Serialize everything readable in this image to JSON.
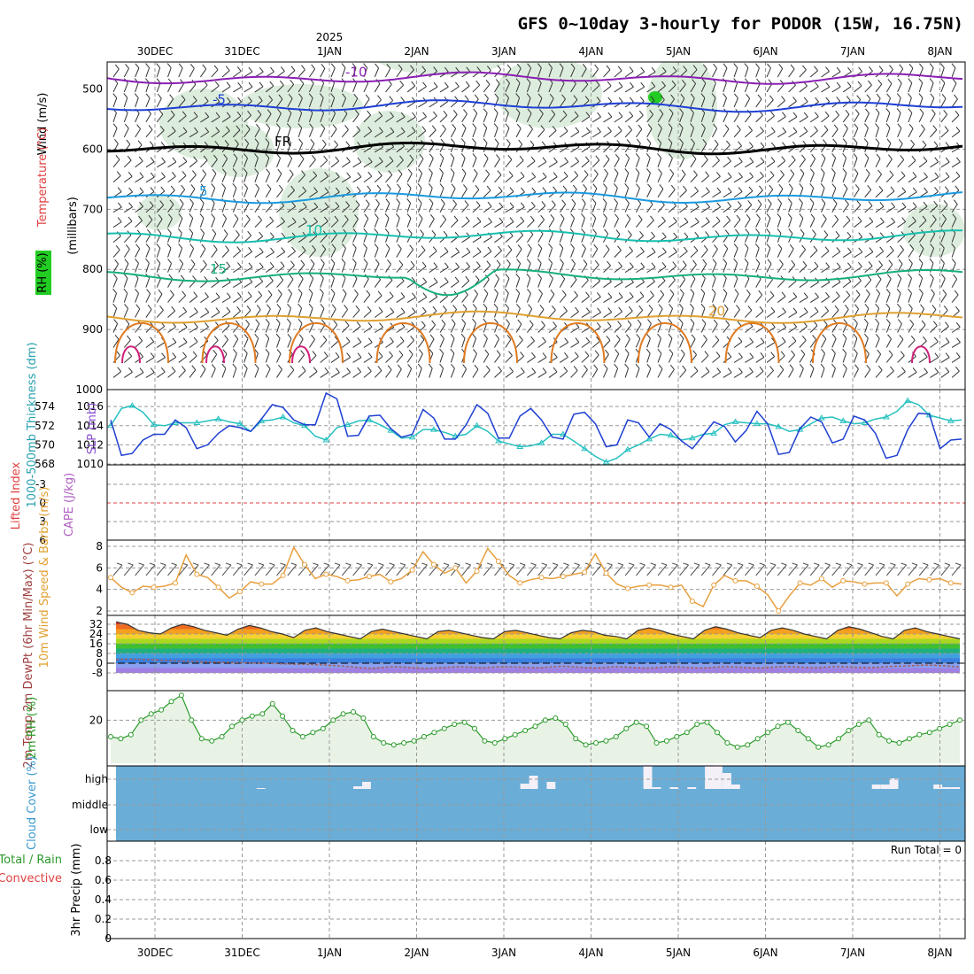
{
  "title": "GFS 0~10day 3-hourly for PODOR (15W, 16.75N)",
  "year_label": "2025",
  "run_total_label": "Run Total = 0",
  "colors": {
    "purple": "#8a1fb4",
    "blue": "#1e3fd6",
    "black": "#000000",
    "lightblue": "#1a9ae0",
    "teal": "#17bfae",
    "green": "#16b07a",
    "orange": "#e0a030",
    "darkorange": "#e07a20",
    "magenta": "#d0207a",
    "slp": "#1f3fd2",
    "thick": "#26c0c0",
    "wind": "#e8a040",
    "rh": "#2a9a2a",
    "cloud": "#6aadd6",
    "lifted": "#e04040"
  },
  "chart_data": [
    {
      "type": "line",
      "panel": "upper-air",
      "title": "GFS 0~10day 3-hourly for PODOR (15W, 16.75N)",
      "ylabel": "(millibars)",
      "side_labels": [
        "Wind (m/s)",
        "Temperature (°C)",
        "RH (%)"
      ],
      "x_ticks": [
        "30DEC",
        "31DEC",
        "1JAN",
        "2JAN",
        "3JAN",
        "4JAN",
        "5JAN",
        "6JAN",
        "7JAN",
        "8JAN"
      ],
      "y_ticks": [
        500,
        600,
        700,
        800,
        900,
        1000
      ],
      "ylim": [
        1000,
        455
      ],
      "isotherms": [
        {
          "label": "-10",
          "base": 482
        },
        {
          "label": "-5",
          "base": 528
        },
        {
          "label": "FR",
          "base": 598
        },
        {
          "label": "5",
          "base": 680
        },
        {
          "label": "10",
          "base": 745
        },
        {
          "label": "15",
          "base": 810
        },
        {
          "label": "20",
          "base": 880
        }
      ]
    },
    {
      "type": "line",
      "panel": "slp-thickness",
      "ylabel": "SLP (mb)",
      "ylabel2": "1000-500mb Thickness (dm)",
      "slp_ticks": [
        1010,
        1012,
        1014,
        1016
      ],
      "thick_ticks": [
        568,
        570,
        572,
        574
      ],
      "slp_values": [
        1014.6,
        1010.9,
        1011.1,
        1012.5,
        1013.1,
        1013.1,
        1014.6,
        1013.8,
        1011.6,
        1012.0,
        1013.2,
        1014.0,
        1013.8,
        1013.4,
        1014.7,
        1016.2,
        1015.9,
        1014.6,
        1014.1,
        1014.1,
        1017.4,
        1016.8,
        1012.9,
        1013.0,
        1015.0,
        1015.1,
        1013.7,
        1012.8,
        1013.1,
        1015.7,
        1014.8,
        1012.6,
        1012.6,
        1014.1,
        1016.2,
        1015.3,
        1012.7,
        1012.7,
        1015.0,
        1015.8,
        1014.6,
        1012.8,
        1012.6,
        1015.2,
        1015.4,
        1014.2,
        1011.8,
        1012.0,
        1014.6,
        1014.3,
        1012.8,
        1014.2,
        1013.6,
        1012.4,
        1011.6,
        1013.0,
        1014.4,
        1013.9,
        1012.3,
        1013.5,
        1015.5,
        1014.2,
        1011.0,
        1011.2,
        1013.7,
        1014.9,
        1014.4,
        1012.2,
        1012.6,
        1015.0,
        1014.6,
        1013.2,
        1010.6,
        1010.9,
        1013.6,
        1015.3,
        1015.2,
        1011.6,
        1012.5,
        1012.6
      ],
      "thick_values": [
        572.0,
        573.8,
        574.1,
        573.4,
        572.1,
        572.0,
        572.3,
        572.3,
        572.3,
        572.5,
        572.7,
        572.4,
        572.2,
        571.4,
        572.5,
        572.6,
        572.9,
        572.3,
        572.0,
        570.9,
        570.5,
        571.8,
        572.1,
        572.5,
        572.6,
        572.1,
        571.5,
        570.7,
        570.8,
        571.6,
        571.6,
        571.3,
        570.9,
        571.1,
        572.0,
        571.4,
        570.4,
        570.1,
        569.8,
        569.9,
        570.2,
        571.1,
        571.1,
        570.4,
        569.6,
        568.8,
        568.2,
        568.6,
        569.5,
        570.0,
        570.6,
        571.1,
        571.0,
        570.5,
        570.7,
        571.1,
        571.2,
        572.1,
        572.4,
        572.3,
        572.2,
        572.2,
        571.9,
        571.4,
        571.6,
        572.2,
        572.8,
        572.9,
        572.5,
        572.2,
        572.3,
        572.7,
        572.9,
        573.5,
        574.6,
        574.2,
        573.1,
        572.8,
        572.5,
        572.6
      ]
    },
    {
      "type": "line",
      "panel": "stability",
      "ylabel": "Lifted Index",
      "ylabel2": "CAPE (J/kg)",
      "y_ticks": [
        "-3",
        "0",
        "3",
        "6"
      ],
      "ylim": [
        -6,
        6
      ]
    },
    {
      "type": "line",
      "panel": "wind-10m",
      "ylabel": "10m Wind Speed & Barbs (m/s)",
      "y_ticks": [
        2,
        4,
        6,
        8
      ],
      "ylim": [
        1.6,
        8.4
      ],
      "values": [
        5.1,
        4.2,
        3.7,
        4.3,
        4.2,
        4.3,
        4.6,
        7.2,
        5.4,
        5.1,
        4.2,
        3.2,
        3.8,
        4.7,
        4.5,
        4.5,
        5.3,
        7.9,
        6.3,
        5.0,
        5.4,
        5.2,
        4.8,
        4.9,
        5.2,
        5.4,
        4.7,
        5.0,
        5.8,
        7.5,
        6.3,
        5.5,
        6.0,
        4.6,
        5.7,
        7.8,
        6.6,
        5.3,
        4.6,
        4.9,
        5.1,
        5.0,
        5.2,
        5.4,
        5.6,
        7.3,
        5.5,
        4.5,
        4.1,
        4.3,
        4.4,
        4.4,
        4.2,
        4.4,
        2.9,
        2.4,
        4.4,
        5.3,
        4.8,
        4.8,
        4.3,
        3.5,
        2.0,
        3.4,
        4.6,
        4.4,
        5.0,
        4.2,
        4.8,
        4.7,
        4.5,
        4.6,
        4.6,
        3.4,
        4.5,
        5.0,
        4.9,
        5.0,
        4.6,
        4.5
      ]
    },
    {
      "type": "area",
      "panel": "temperature-2m",
      "ylabel": "2m Temp 2m DewPt (6hr Min/Max) (°C)",
      "y_ticks": [
        "32",
        "24",
        "16",
        "8",
        "0",
        "-8"
      ],
      "ylim": [
        -12,
        36
      ],
      "temp_values": [
        34,
        32,
        27,
        25,
        24,
        29,
        32,
        30,
        27,
        25,
        23,
        28,
        31,
        29,
        26,
        24,
        21,
        27,
        29,
        26,
        24,
        22,
        20,
        26,
        28,
        26,
        24,
        22,
        20,
        26,
        27,
        25,
        23,
        21,
        20,
        26,
        27,
        25,
        23,
        21,
        20,
        25,
        27,
        26,
        23,
        22,
        20,
        27,
        29,
        27,
        24,
        22,
        20,
        27,
        30,
        28,
        25,
        23,
        21,
        27,
        29,
        27,
        24,
        22,
        20,
        27,
        30,
        28,
        25,
        22,
        20,
        27,
        29,
        26,
        24,
        22,
        20
      ],
      "dewpt_values": [
        3.1,
        3.4,
        3.3,
        3.0,
        2.5,
        2.1,
        1.7,
        1.4,
        1.0,
        0.9,
        0.7,
        0.5,
        0.3,
        0.1,
        -0.2,
        -0.5,
        -0.8,
        -0.9,
        -1.2,
        -1.6,
        -2.2,
        -2.8,
        -3.6,
        -4.3,
        -3.5,
        -2.8,
        -3.3,
        -4.0,
        -4.3,
        -3.8,
        -3.3,
        -2.9,
        -3.3,
        -3.7,
        -3.2,
        -2.8,
        -3.1,
        -3.5,
        -3.8,
        -3.2,
        -2.5,
        -2.9,
        -3.4,
        -3.9,
        -3.4,
        -2.9,
        -3.3,
        -3.7,
        -4.0,
        -3.4,
        -2.9,
        -3.3,
        -3.7,
        -3.9,
        -3.3,
        -2.8,
        -3.2,
        -3.6,
        -3.9,
        -3.4,
        -2.8,
        -3.0,
        -3.4,
        -3.7,
        -3.2,
        -2.7,
        -3.1,
        -3.4,
        -3.6,
        -3.1,
        -2.6,
        -2.4,
        -1.9,
        -1.5,
        -1.8,
        -2.5,
        -3.0
      ]
    },
    {
      "type": "area",
      "panel": "rh-2m",
      "ylabel": "2m RH (%)",
      "y_ticks": [
        "20"
      ],
      "ylim": [
        0,
        34
      ],
      "values": [
        12,
        11,
        13,
        20,
        23,
        25,
        29,
        32,
        20,
        11,
        10,
        12,
        17,
        20,
        22,
        23,
        28,
        22,
        15,
        12,
        14,
        16,
        20,
        23,
        24,
        21,
        12,
        9,
        8,
        9,
        10,
        12,
        14,
        16,
        18,
        19,
        16,
        10,
        9,
        11,
        13,
        15,
        17,
        20,
        21,
        18,
        11,
        8,
        9,
        10,
        12,
        16,
        19,
        17,
        9,
        10,
        12,
        14,
        18,
        19,
        14,
        9,
        7,
        8,
        11,
        14,
        17,
        19,
        15,
        11,
        7,
        8,
        11,
        15,
        18,
        20,
        13,
        10,
        9,
        11,
        13,
        14,
        16,
        18,
        20
      ]
    },
    {
      "type": "bar",
      "panel": "cloud-cover",
      "ylabel": "Cloud Cover (%)",
      "y_ticks": [
        "high",
        "middle",
        "low"
      ],
      "high_values": [
        0,
        0,
        0,
        0,
        0,
        0,
        0,
        0,
        0,
        0,
        0,
        0,
        0,
        0,
        0,
        0,
        1,
        0,
        0,
        0,
        0,
        0,
        0,
        0,
        0,
        0,
        0,
        3,
        8,
        0,
        0,
        0,
        0,
        0,
        0,
        0,
        0,
        0,
        0,
        0,
        0,
        0,
        0,
        0,
        0,
        0,
        6,
        15,
        0,
        8,
        0,
        0,
        0,
        0,
        0,
        0,
        0,
        0,
        0,
        0,
        28,
        2,
        0,
        2,
        0,
        2,
        0,
        28,
        26,
        18,
        5,
        0,
        0,
        0,
        0,
        0,
        0,
        0,
        0,
        0,
        0,
        0,
        0,
        0,
        0,
        0,
        5,
        5,
        12,
        0,
        0,
        0,
        0,
        5,
        2,
        2
      ]
    },
    {
      "type": "bar",
      "panel": "precip",
      "ylabel": "3hr Precip (mm)",
      "side_labels": [
        "Total / Rain",
        "Convective"
      ],
      "y_ticks": [
        "0.8",
        "0.6",
        "0.4",
        "0.2",
        "0"
      ],
      "ylim": [
        0,
        1
      ],
      "values": []
    }
  ]
}
